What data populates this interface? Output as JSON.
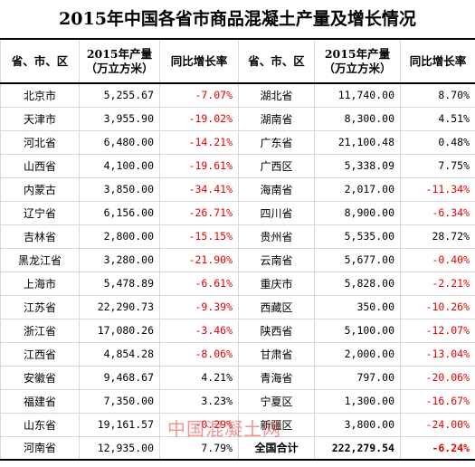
{
  "title": "2015年中国各省市商品混凝土产量及增长情况",
  "headers": {
    "region": "省、市、区",
    "production_line1": "2015年产量",
    "production_line2": "（万立方米）",
    "growth": "同比增长率"
  },
  "rows": [
    {
      "l_name": "北京市",
      "l_val": "5,255.67",
      "l_rate": "-7.07%",
      "l_neg": true,
      "r_name": "湖北省",
      "r_val": "11,740.00",
      "r_rate": "8.70%",
      "r_neg": false
    },
    {
      "l_name": "天津市",
      "l_val": "3,955.90",
      "l_rate": "-19.02%",
      "l_neg": true,
      "r_name": "湖南省",
      "r_val": "8,300.00",
      "r_rate": "4.51%",
      "r_neg": false
    },
    {
      "l_name": "河北省",
      "l_val": "6,480.00",
      "l_rate": "-14.21%",
      "l_neg": true,
      "r_name": "广东省",
      "r_val": "21,100.48",
      "r_rate": "0.48%",
      "r_neg": false
    },
    {
      "l_name": "山西省",
      "l_val": "4,100.00",
      "l_rate": "-19.61%",
      "l_neg": true,
      "r_name": "广西区",
      "r_val": "5,338.09",
      "r_rate": "7.75%",
      "r_neg": false
    },
    {
      "l_name": "内蒙古",
      "l_val": "3,850.00",
      "l_rate": "-34.41%",
      "l_neg": true,
      "r_name": "海南省",
      "r_val": "2,017.00",
      "r_rate": "-11.34%",
      "r_neg": true
    },
    {
      "l_name": "辽宁省",
      "l_val": "6,156.00",
      "l_rate": "-26.71%",
      "l_neg": true,
      "r_name": "四川省",
      "r_val": "8,900.00",
      "r_rate": "-6.34%",
      "r_neg": true
    },
    {
      "l_name": "吉林省",
      "l_val": "2,800.00",
      "l_rate": "-15.15%",
      "l_neg": true,
      "r_name": "贵州省",
      "r_val": "5,535.00",
      "r_rate": "28.72%",
      "r_neg": false
    },
    {
      "l_name": "黑龙江省",
      "l_val": "3,280.00",
      "l_rate": "-21.90%",
      "l_neg": true,
      "r_name": "云南省",
      "r_val": "5,677.00",
      "r_rate": "-0.40%",
      "r_neg": true
    },
    {
      "l_name": "上海市",
      "l_val": "5,478.89",
      "l_rate": "-6.61%",
      "l_neg": true,
      "r_name": "重庆市",
      "r_val": "5,828.00",
      "r_rate": "-2.21%",
      "r_neg": true
    },
    {
      "l_name": "江苏省",
      "l_val": "22,290.73",
      "l_rate": "-9.39%",
      "l_neg": true,
      "r_name": "西藏区",
      "r_val": "350.00",
      "r_rate": "-10.26%",
      "r_neg": true
    },
    {
      "l_name": "浙江省",
      "l_val": "17,080.26",
      "l_rate": "-3.46%",
      "l_neg": true,
      "r_name": "陕西省",
      "r_val": "5,100.00",
      "r_rate": "-12.07%",
      "r_neg": true
    },
    {
      "l_name": "江西省",
      "l_val": "4,854.28",
      "l_rate": "-8.06%",
      "l_neg": true,
      "r_name": "甘肃省",
      "r_val": "2,000.00",
      "r_rate": "-13.04%",
      "r_neg": true
    },
    {
      "l_name": "安徽省",
      "l_val": "9,468.67",
      "l_rate": "4.21%",
      "l_neg": false,
      "r_name": "青海省",
      "r_val": "797.00",
      "r_rate": "-20.06%",
      "r_neg": true
    },
    {
      "l_name": "福建省",
      "l_val": "7,350.00",
      "l_rate": "3.23%",
      "l_neg": false,
      "r_name": "宁夏区",
      "r_val": "1,300.00",
      "r_rate": "-16.67%",
      "r_neg": true
    },
    {
      "l_name": "山东省",
      "l_val": "19,161.57",
      "l_rate": "-0.29%",
      "l_neg": true,
      "r_name": "新疆区",
      "r_val": "3,800.00",
      "r_rate": "-24.00%",
      "r_neg": true
    },
    {
      "l_name": "河南省",
      "l_val": "12,935.00",
      "l_rate": "7.79%",
      "l_neg": false,
      "r_name": "全国合计",
      "r_val": "222,279.54",
      "r_rate": "-6.24%",
      "r_neg": true,
      "r_bold": true
    }
  ],
  "watermark": "中国混凝土网",
  "colors": {
    "negative": "#e60000",
    "border": "#d8d8d8"
  }
}
